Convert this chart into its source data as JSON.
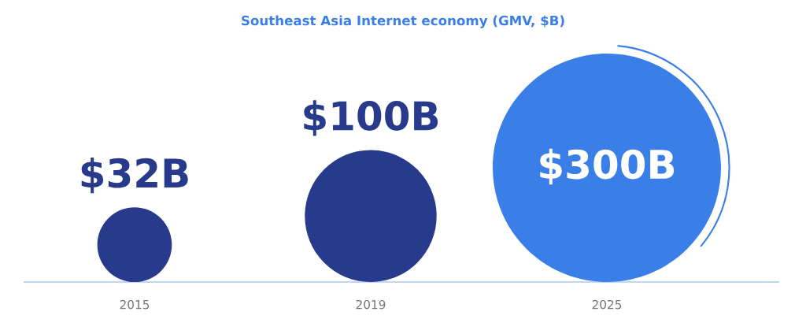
{
  "chart_data": {
    "type": "other",
    "title": "Southeast Asia Internet economy (GMV, $B)",
    "categories": [
      "2015",
      "2019",
      "2025"
    ],
    "values": [
      32,
      100,
      300
    ],
    "value_labels": [
      "$32B",
      "$100B",
      "$300B"
    ],
    "colors": [
      "#283a8c",
      "#283a8c",
      "#3a7ee8"
    ]
  }
}
